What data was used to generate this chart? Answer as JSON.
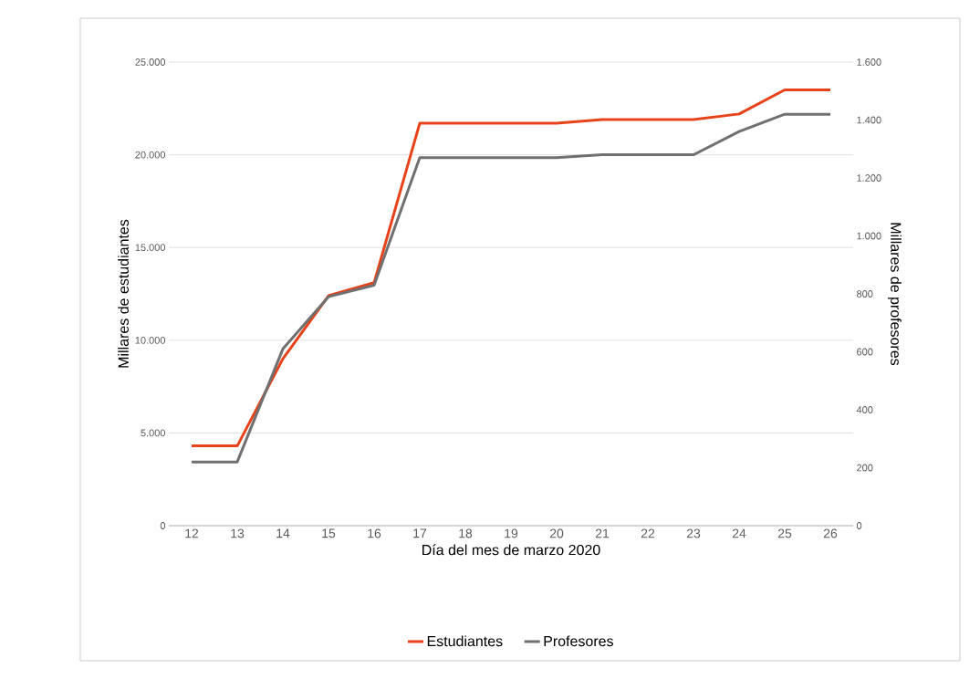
{
  "chart_data": {
    "type": "line",
    "xlabel": "Día del mes de marzo 2020",
    "ylabel": "Millares de estudiantes",
    "y2label": "Millares de profesores",
    "categories": [
      "12",
      "13",
      "14",
      "15",
      "16",
      "17",
      "18",
      "19",
      "20",
      "21",
      "22",
      "23",
      "24",
      "25",
      "26"
    ],
    "series": [
      {
        "name": "Estudiantes",
        "color": "#e8421a",
        "values": [
          4300,
          4300,
          9000,
          12400,
          13100,
          21700,
          21700,
          21700,
          21700,
          21900,
          21900,
          21900,
          22200,
          23500,
          23500
        ]
      },
      {
        "name": "Profesores",
        "color": "#707070",
        "axis": "y2",
        "values": [
          220,
          220,
          610,
          790,
          830,
          1270,
          1270,
          1270,
          1270,
          1280,
          1280,
          1280,
          1360,
          1420,
          1420
        ]
      }
    ],
    "ylim": [
      0,
      25000
    ],
    "yticks": [
      0,
      {
        "value": 5000,
        "label": "5.000"
      },
      {
        "value": 10000,
        "label": "10.000"
      },
      {
        "value": 15000,
        "label": "15.000"
      },
      {
        "value": 20000,
        "label": "20.000"
      },
      {
        "value": 25000,
        "label": "25.000"
      }
    ],
    "y2lim": [
      0,
      1600
    ],
    "y2ticks": [
      0,
      200,
      400,
      600,
      800,
      {
        "value": 1000,
        "label": "1.000"
      },
      {
        "value": 1200,
        "label": "1.200"
      },
      {
        "value": 1400,
        "label": "1.400"
      },
      {
        "value": 1600,
        "label": "1.600"
      }
    ],
    "grid": "y",
    "legend": "bottom"
  }
}
